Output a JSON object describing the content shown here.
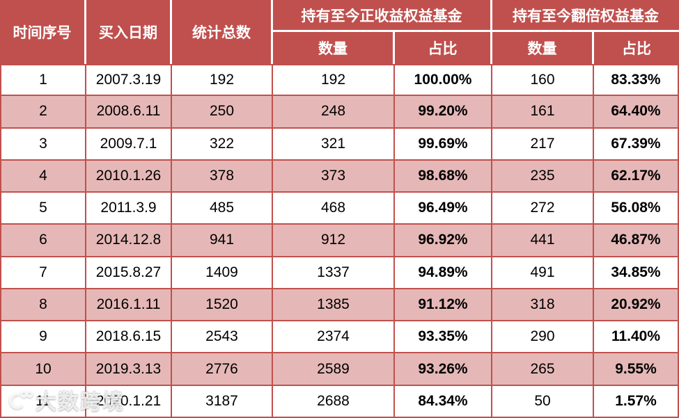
{
  "table": {
    "headers": {
      "col_seq": "时间序号",
      "col_buy_date": "买入日期",
      "col_total": "统计总数",
      "group_positive": "持有至今正收益权益基金",
      "group_double": "持有至今翻倍权益基金",
      "sub_count": "数量",
      "sub_ratio": "占比"
    }
  },
  "watermark": {
    "text": "大数跨境",
    "logo": "circle-100-logo"
  },
  "colors": {
    "header_bg": "#C0504D",
    "header_text": "#FFFFFF",
    "row_alt_bg": "#E5B8B7",
    "row_bg": "#FFFFFF",
    "border": "#C0504D",
    "header_divider": "#FFFFFF",
    "data_text": "#000000"
  },
  "chart_data": {
    "type": "table",
    "columns": [
      "时间序号",
      "买入日期",
      "统计总数",
      "持有至今正收益权益基金-数量",
      "持有至今正收益权益基金-占比",
      "持有至今翻倍权益基金-数量",
      "持有至今翻倍权益基金-占比"
    ],
    "rows": [
      [
        "1",
        "2007.3.19",
        "192",
        "192",
        "100.00%",
        "160",
        "83.33%"
      ],
      [
        "2",
        "2008.6.11",
        "250",
        "248",
        "99.20%",
        "161",
        "64.40%"
      ],
      [
        "3",
        "2009.7.1",
        "322",
        "321",
        "99.69%",
        "217",
        "67.39%"
      ],
      [
        "4",
        "2010.1.26",
        "378",
        "373",
        "98.68%",
        "235",
        "62.17%"
      ],
      [
        "5",
        "2011.3.9",
        "485",
        "468",
        "96.49%",
        "272",
        "56.08%"
      ],
      [
        "6",
        "2014.12.8",
        "941",
        "912",
        "96.92%",
        "441",
        "46.87%"
      ],
      [
        "7",
        "2015.8.27",
        "1409",
        "1337",
        "94.89%",
        "491",
        "34.85%"
      ],
      [
        "8",
        "2016.1.11",
        "1520",
        "1385",
        "91.12%",
        "318",
        "20.92%"
      ],
      [
        "9",
        "2018.6.15",
        "2543",
        "2374",
        "93.35%",
        "290",
        "11.40%"
      ],
      [
        "10",
        "2019.3.13",
        "2776",
        "2589",
        "93.26%",
        "265",
        "9.55%"
      ],
      [
        "11",
        "2020.1.21",
        "3187",
        "2688",
        "84.34%",
        "50",
        "1.57%"
      ]
    ]
  }
}
